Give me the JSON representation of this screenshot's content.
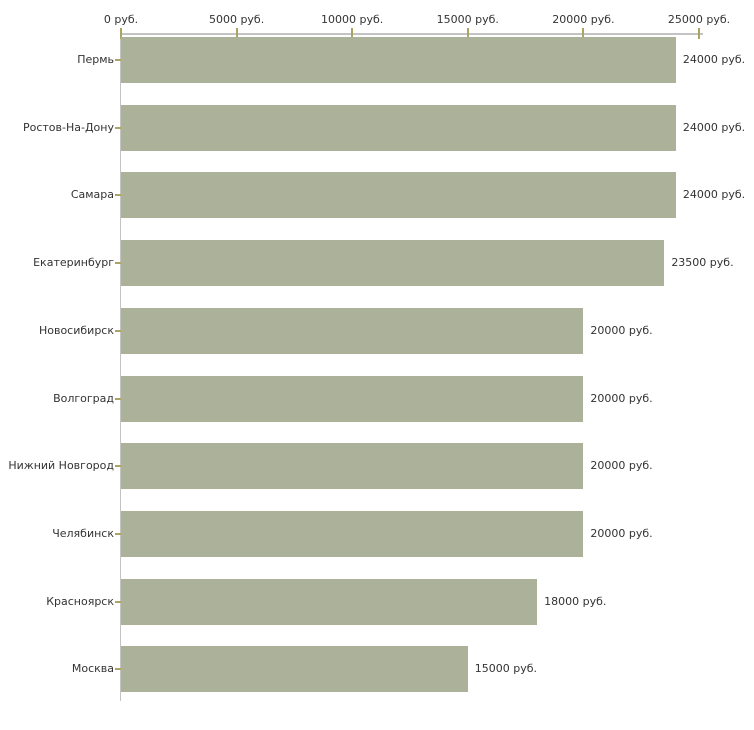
{
  "chart_data": {
    "type": "bar",
    "orientation": "horizontal",
    "title": "",
    "xlabel": "",
    "ylabel": "",
    "unit": "руб.",
    "xlim": [
      0,
      25000
    ],
    "grid": false,
    "legend": "none",
    "categories": [
      "Пермь",
      "Ростов-На-Дону",
      "Самара",
      "Екатеринбург",
      "Новосибирск",
      "Волгоград",
      "Нижний Новгород",
      "Челябинск",
      "Красноярск",
      "Москва"
    ],
    "values": [
      24000,
      24000,
      24000,
      23500,
      20000,
      20000,
      20000,
      20000,
      18000,
      15000
    ],
    "value_labels": [
      "24000 руб.",
      "24000 руб.",
      "24000 руб.",
      "23500 руб.",
      "20000 руб.",
      "20000 руб.",
      "20000 руб.",
      "20000 руб.",
      "18000 руб.",
      "15000 руб."
    ],
    "x_ticks": [
      {
        "value": 0,
        "label": "0 руб."
      },
      {
        "value": 5000,
        "label": "5000 руб."
      },
      {
        "value": 10000,
        "label": "10000 руб."
      },
      {
        "value": 15000,
        "label": "15000 руб."
      },
      {
        "value": 20000,
        "label": "20000 руб."
      },
      {
        "value": 25000,
        "label": "25000 руб."
      }
    ],
    "colors": {
      "bar": "#acb199",
      "axis_line": "#c3c3c3",
      "tick": "#aba565",
      "text": "#333333",
      "background": "#ffffff"
    }
  }
}
